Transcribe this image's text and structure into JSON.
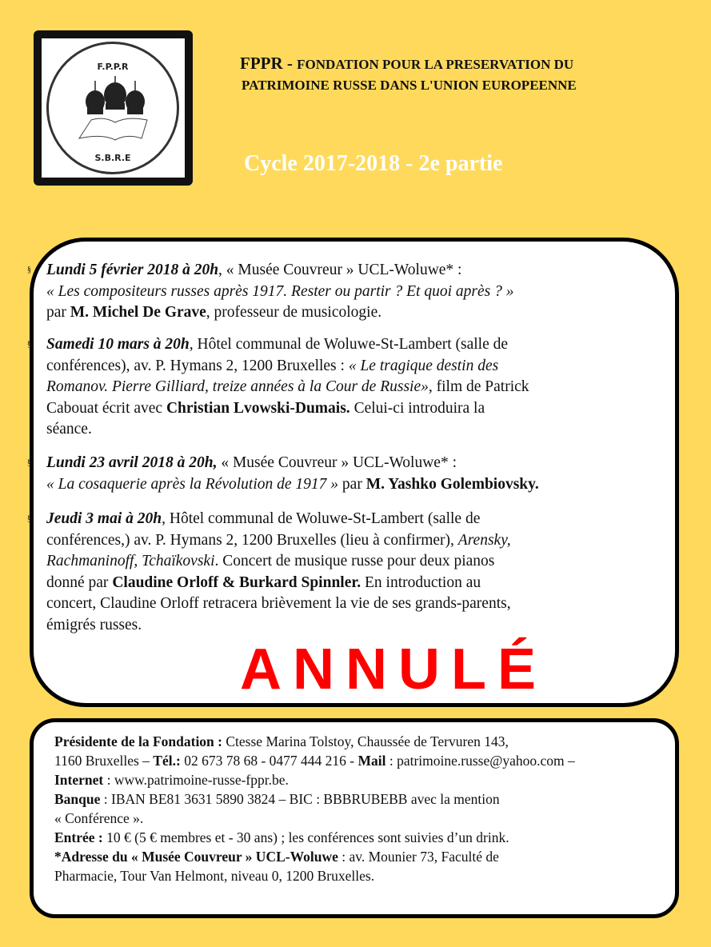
{
  "logo": {
    "top": "F.P.P.R",
    "bottom": "S.B.R.E"
  },
  "header": {
    "acronym": "FPPR - ",
    "line1": "FONDATION POUR LA PRESERVATION DU",
    "line2": "PATRIMOINE RUSSE DANS  L'UNION EUROPEENNE",
    "cycle": "Cycle  2017-2018 - 2e partie"
  },
  "events": [
    {
      "bullet": "§",
      "lines": [
        [
          {
            "t": " Lundi 5 février 2018 à 20h",
            "s": "bi"
          },
          {
            "t": ", « Musée Couvreur » UCL-Woluwe* :",
            "s": ""
          }
        ],
        [
          {
            "t": "« Les compositeurs russes après 1917. Rester ou partir ? Et quoi après ? »",
            "s": "i"
          }
        ],
        [
          {
            "t": "par ",
            "s": ""
          },
          {
            "t": "M. Michel De Grave",
            "s": "b"
          },
          {
            "t": ", professeur de musicologie.",
            "s": ""
          }
        ]
      ]
    },
    {
      "bullet": "§",
      "lines": [
        [
          {
            "t": "Samedi 10 mars à 20h",
            "s": "bi"
          },
          {
            "t": ", Hôtel communal de Woluwe-St-Lambert (salle de",
            "s": ""
          }
        ],
        [
          {
            "t": "conférences), av. P. Hymans 2, 1200 Bruxelles : ",
            "s": ""
          },
          {
            "t": "« Le tragique destin des",
            "s": "i"
          }
        ],
        [
          {
            "t": "Romanov. Pierre Gilliard, treize années à la Cour de Russie»",
            "s": "i"
          },
          {
            "t": ", film de Patrick",
            "s": ""
          }
        ],
        [
          {
            "t": "Cabouat écrit avec ",
            "s": ""
          },
          {
            "t": "Christian  Lvowski-Dumais.",
            "s": "b"
          },
          {
            "t": " Celui-ci introduira la",
            "s": ""
          }
        ],
        [
          {
            "t": "séance.",
            "s": ""
          }
        ]
      ]
    },
    {
      "bullet": "§",
      "lines": [
        [
          {
            "t": "Lundi 23 avril 2018 à 20h,",
            "s": "bi"
          },
          {
            "t": " « Musée Couvreur » UCL-Woluwe* :",
            "s": ""
          }
        ],
        [
          {
            "t": "« La cosaquerie après la Révolution de 1917 »",
            "s": "i"
          },
          {
            "t": " par ",
            "s": ""
          },
          {
            "t": "M. Yashko Golembiovsky.",
            "s": "b"
          }
        ]
      ]
    },
    {
      "bullet": "§",
      "lines": [
        [
          {
            "t": "Jeudi 3 mai à 20h",
            "s": "bi"
          },
          {
            "t": ", Hôtel communal de Woluwe-St-Lambert (salle de",
            "s": ""
          }
        ],
        [
          {
            "t": "conférences,) av. P. Hymans 2, 1200 Bruxelles (lieu à confirmer), ",
            "s": ""
          },
          {
            "t": "Arensky,",
            "s": "i"
          }
        ],
        [
          {
            "t": "Rachmaninoff,  Tchaïkovski",
            "s": "i"
          },
          {
            "t": ". Concert de musique russe pour deux pianos",
            "s": ""
          }
        ],
        [
          {
            "t": "donné par ",
            "s": ""
          },
          {
            "t": "Claudine Orloff & Burkard Spinnler.",
            "s": "b"
          },
          {
            "t": " En introduction au",
            "s": ""
          }
        ],
        [
          {
            "t": "concert, Claudine Orloff retracera brièvement la vie de ses grands-parents,",
            "s": ""
          }
        ],
        [
          {
            "t": "émigrés  russes.",
            "s": ""
          }
        ]
      ],
      "stamp": "ANNULÉ"
    }
  ],
  "info": {
    "lines": [
      [
        {
          "t": "Présidente de la Fondation : ",
          "s": "b"
        },
        {
          "t": "Ctesse  Marina Tolstoy, Chaussée de Tervuren 143,",
          "s": ""
        }
      ],
      [
        {
          "t": "1160 Bruxelles – ",
          "s": ""
        },
        {
          "t": "Tél.:",
          "s": "b"
        },
        {
          "t": " 02 673 78 68 - 0477 444 216 - ",
          "s": ""
        },
        {
          "t": "Mail",
          "s": "b"
        },
        {
          "t": " : patrimoine.russe@yahoo.com –",
          "s": ""
        }
      ],
      [
        {
          "t": "Internet",
          "s": "b"
        },
        {
          "t": " : www.patrimoine-russe-fppr.be.",
          "s": ""
        }
      ],
      [
        {
          "t": "Banque",
          "s": "b"
        },
        {
          "t": " : IBAN BE81 3631 5890 3824 – BIC : BBBRUBEBB avec la mention",
          "s": ""
        }
      ],
      [
        {
          "t": "« Conférence ».",
          "s": ""
        }
      ],
      [
        {
          "t": "Entrée :",
          "s": "b"
        },
        {
          "t": " 10 € (5 € membres et - 30 ans) ; les conférences sont suivies d’un drink.",
          "s": ""
        }
      ],
      [
        {
          "t": " ",
          "s": ""
        }
      ],
      [
        {
          "t": "*Adresse du « Musée Couvreur » UCL-Woluwe",
          "s": "b"
        },
        {
          "t": " : av. Mounier 73, Faculté de",
          "s": ""
        }
      ],
      [
        {
          "t": "Pharmacie, Tour Van Helmont, niveau 0, 1200 Bruxelles.",
          "s": ""
        }
      ]
    ]
  },
  "colors": {
    "background": "#FED95C",
    "stamp": "#FF0000"
  }
}
